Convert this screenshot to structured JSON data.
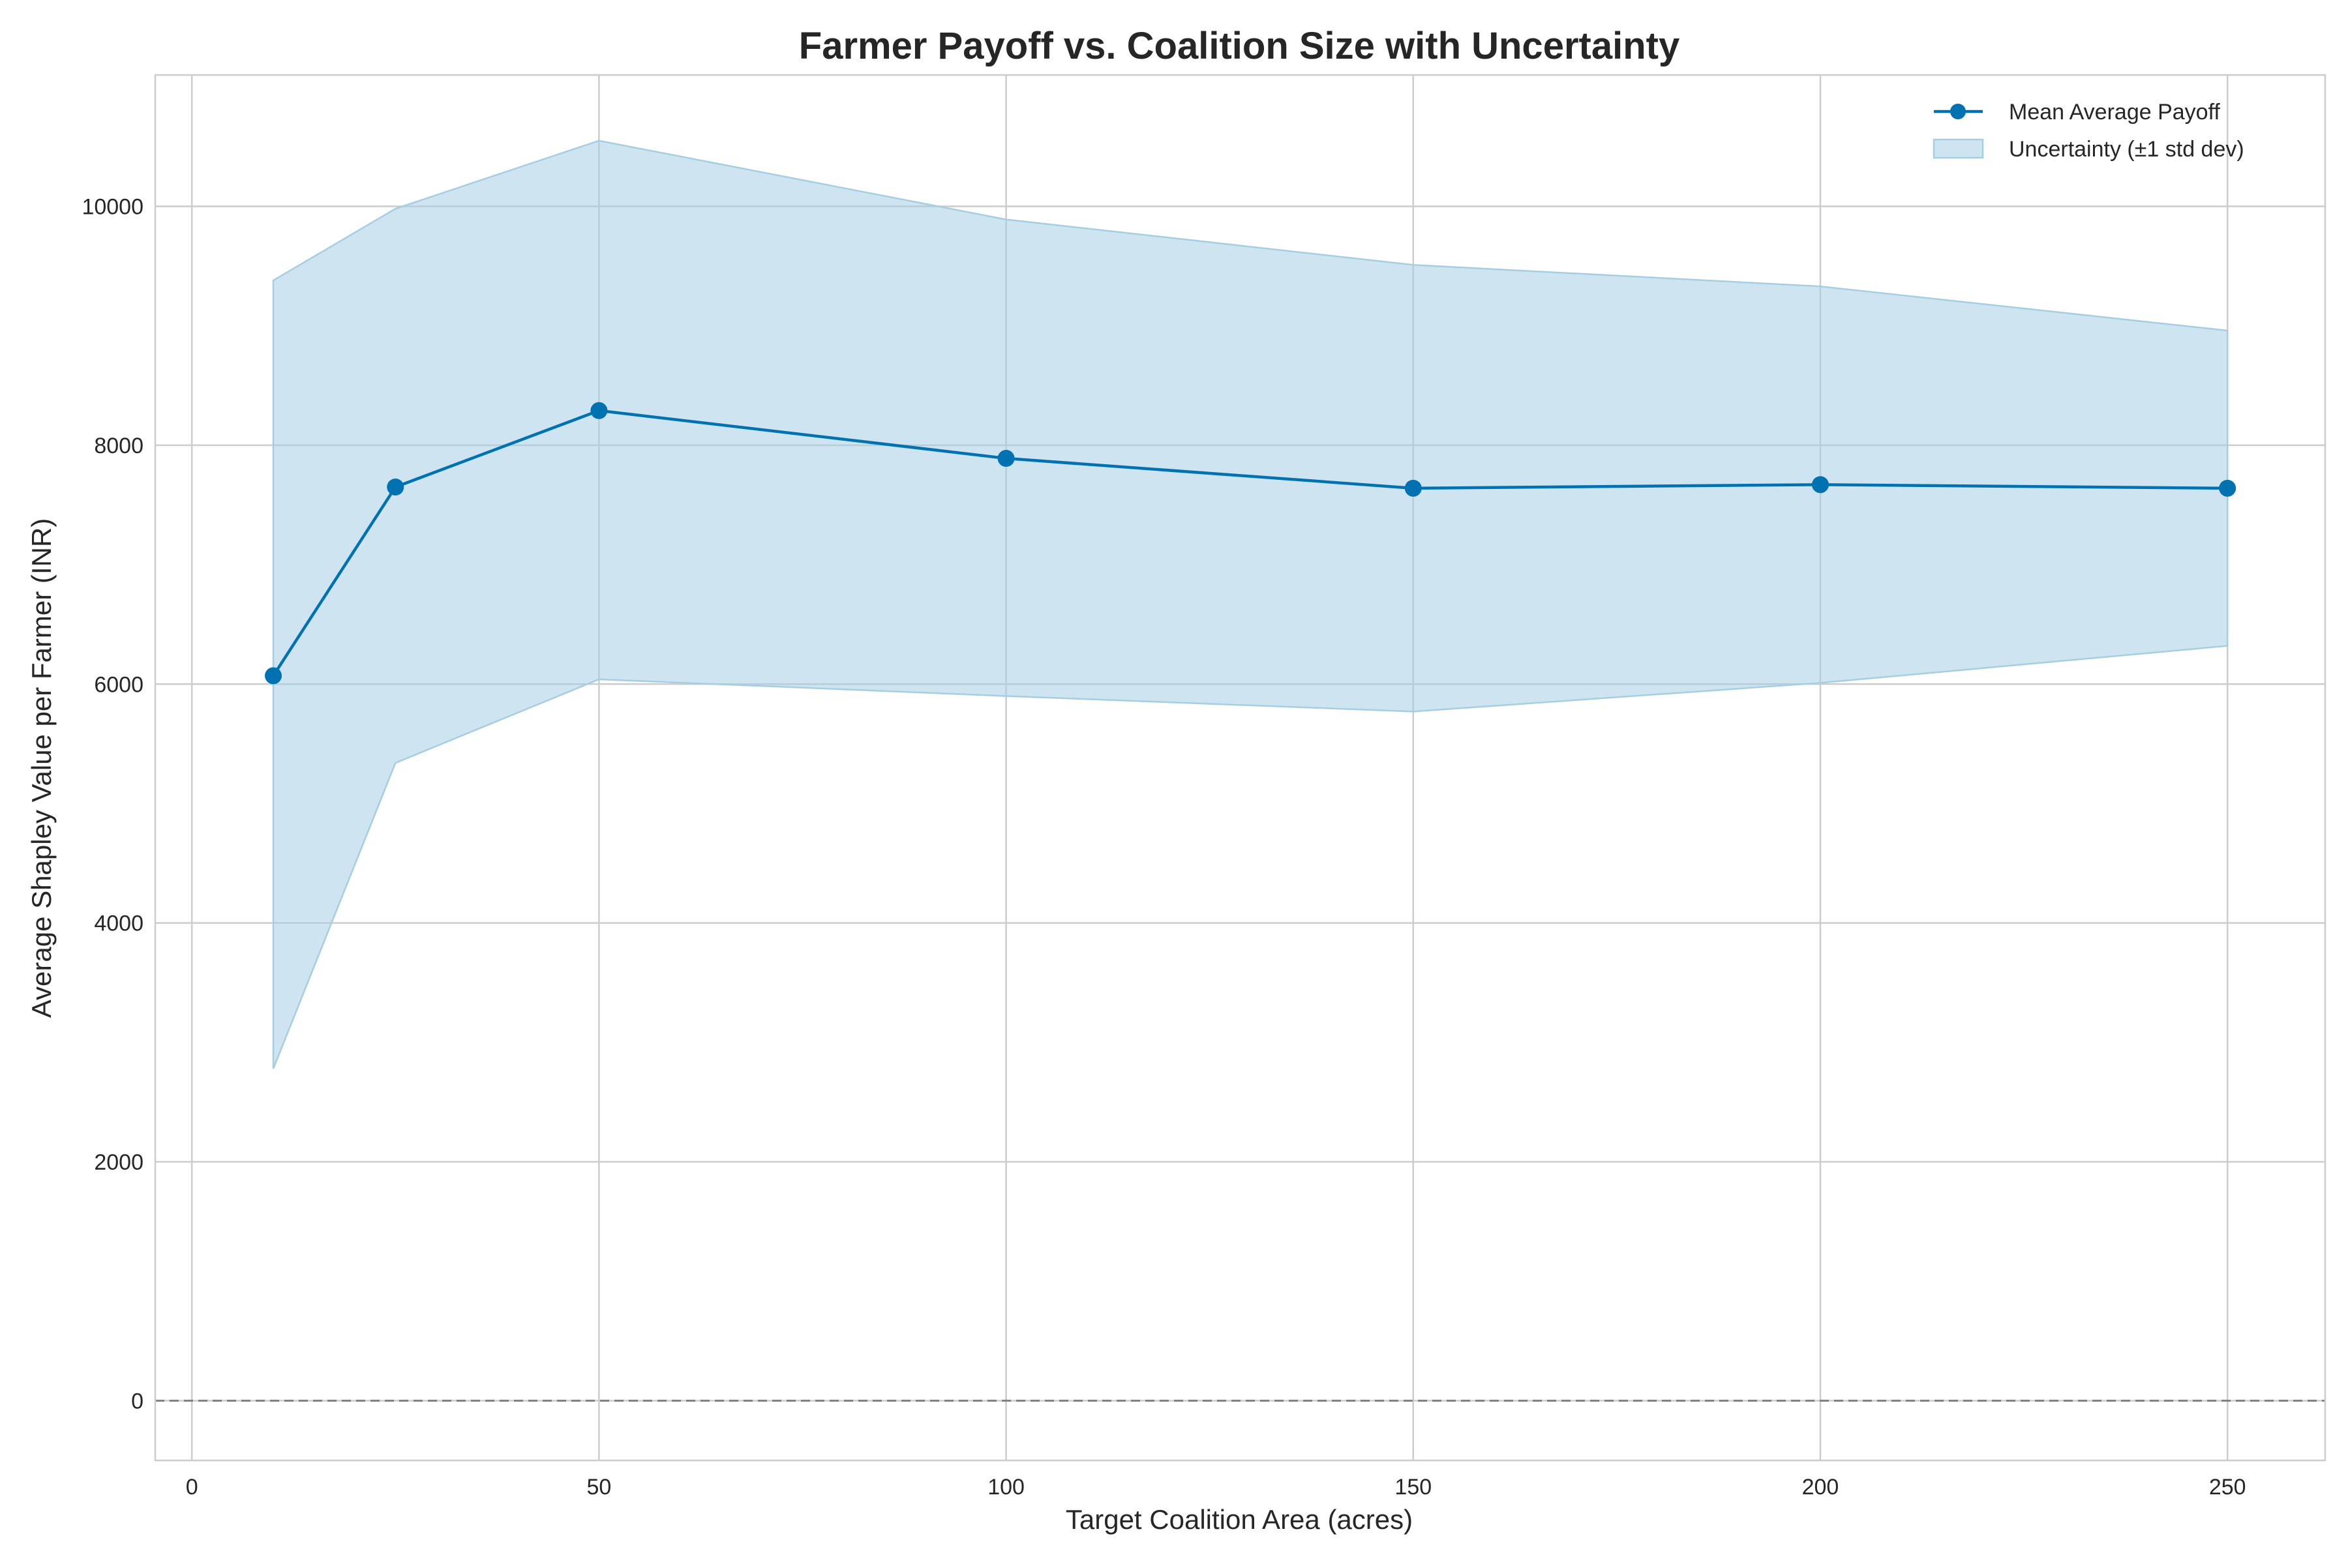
{
  "chart_data": {
    "type": "line",
    "title": "Farmer Payoff vs. Coalition Size with Uncertainty",
    "xlabel": "Target Coalition Area (acres)",
    "ylabel": "Average Shapley Value per Farmer (INR)",
    "xlim": [
      -4.5,
      262
    ],
    "ylim": [
      -500,
      11100
    ],
    "xticks": [
      0,
      50,
      100,
      150,
      200,
      250
    ],
    "yticks": [
      0,
      2000,
      4000,
      6000,
      8000,
      10000
    ],
    "grid": true,
    "legend_position": "top-right",
    "reference_line": {
      "y": 0,
      "style": "dashed"
    },
    "x": [
      10,
      25,
      50,
      100,
      150,
      200,
      250
    ],
    "series": [
      {
        "name": "Mean Average Payoff",
        "values": [
          6070,
          7650,
          8290,
          7890,
          7640,
          7670,
          7640
        ],
        "color": "#0072b2",
        "marker": "circle"
      }
    ],
    "band": {
      "name": "Uncertainty (±1 std dev)",
      "lower": [
        2780,
        5340,
        6040,
        5900,
        5770,
        6010,
        6320
      ],
      "upper": [
        9380,
        9980,
        10550,
        9890,
        9510,
        9330,
        8960
      ],
      "color": "#a6cee3"
    }
  }
}
